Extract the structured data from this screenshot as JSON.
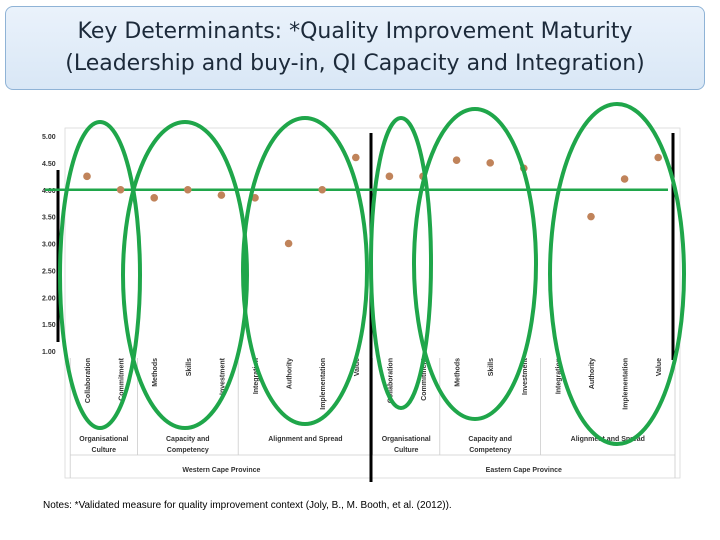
{
  "title": {
    "line1": "Key Determinants: *Quality Improvement Maturity",
    "line2": "(Leadership and buy-in, QI Capacity and Integration)"
  },
  "notes": "Notes: *Validated measure for quality improvement context (Joly, B., M. Booth, et al. (2012)).",
  "colors": {
    "point": "#c0835a",
    "reference_line": "#1fa64a",
    "ellipse": "#1fa64a",
    "divider": "#000000",
    "axis_text": "#333333"
  },
  "chart_data": {
    "type": "scatter",
    "yticks": [
      "5.00",
      "4.50",
      "4.00",
      "3.50",
      "3.00",
      "2.50",
      "2.00",
      "1.50",
      "1.00"
    ],
    "ylim": [
      1,
      5
    ],
    "reference_line": 4.0,
    "categories": [
      "Collaboration",
      "Commitment",
      "Methods",
      "Skills",
      "Investment",
      "Integration",
      "Authority",
      "Implementation",
      "Value",
      "Collaboration",
      "Commitment",
      "Methods",
      "Skills",
      "Investment",
      "Integration",
      "Authority",
      "Implementation",
      "Value"
    ],
    "values": [
      4.25,
      4.0,
      3.85,
      4.0,
      3.9,
      3.85,
      3.0,
      4.0,
      4.6,
      4.25,
      4.25,
      4.55,
      4.5,
      4.4,
      null,
      3.5,
      4.2,
      4.6
    ],
    "groups": [
      {
        "label": "Organisational\nCulture",
        "start": 0,
        "end": 1
      },
      {
        "label": "Capacity and\nCompetency",
        "start": 2,
        "end": 4
      },
      {
        "label": "Alignment and Spread",
        "start": 5,
        "end": 8
      },
      {
        "label": "Organisational\nCulture",
        "start": 9,
        "end": 10
      },
      {
        "label": "Capacity and\nCompetency",
        "start": 11,
        "end": 13
      },
      {
        "label": "Alignment and Spread",
        "start": 14,
        "end": 17
      }
    ],
    "provinces": [
      {
        "label": "Western Cape Province",
        "start": 0,
        "end": 8
      },
      {
        "label": "Eastern Cape Province",
        "start": 9,
        "end": 17
      }
    ]
  }
}
